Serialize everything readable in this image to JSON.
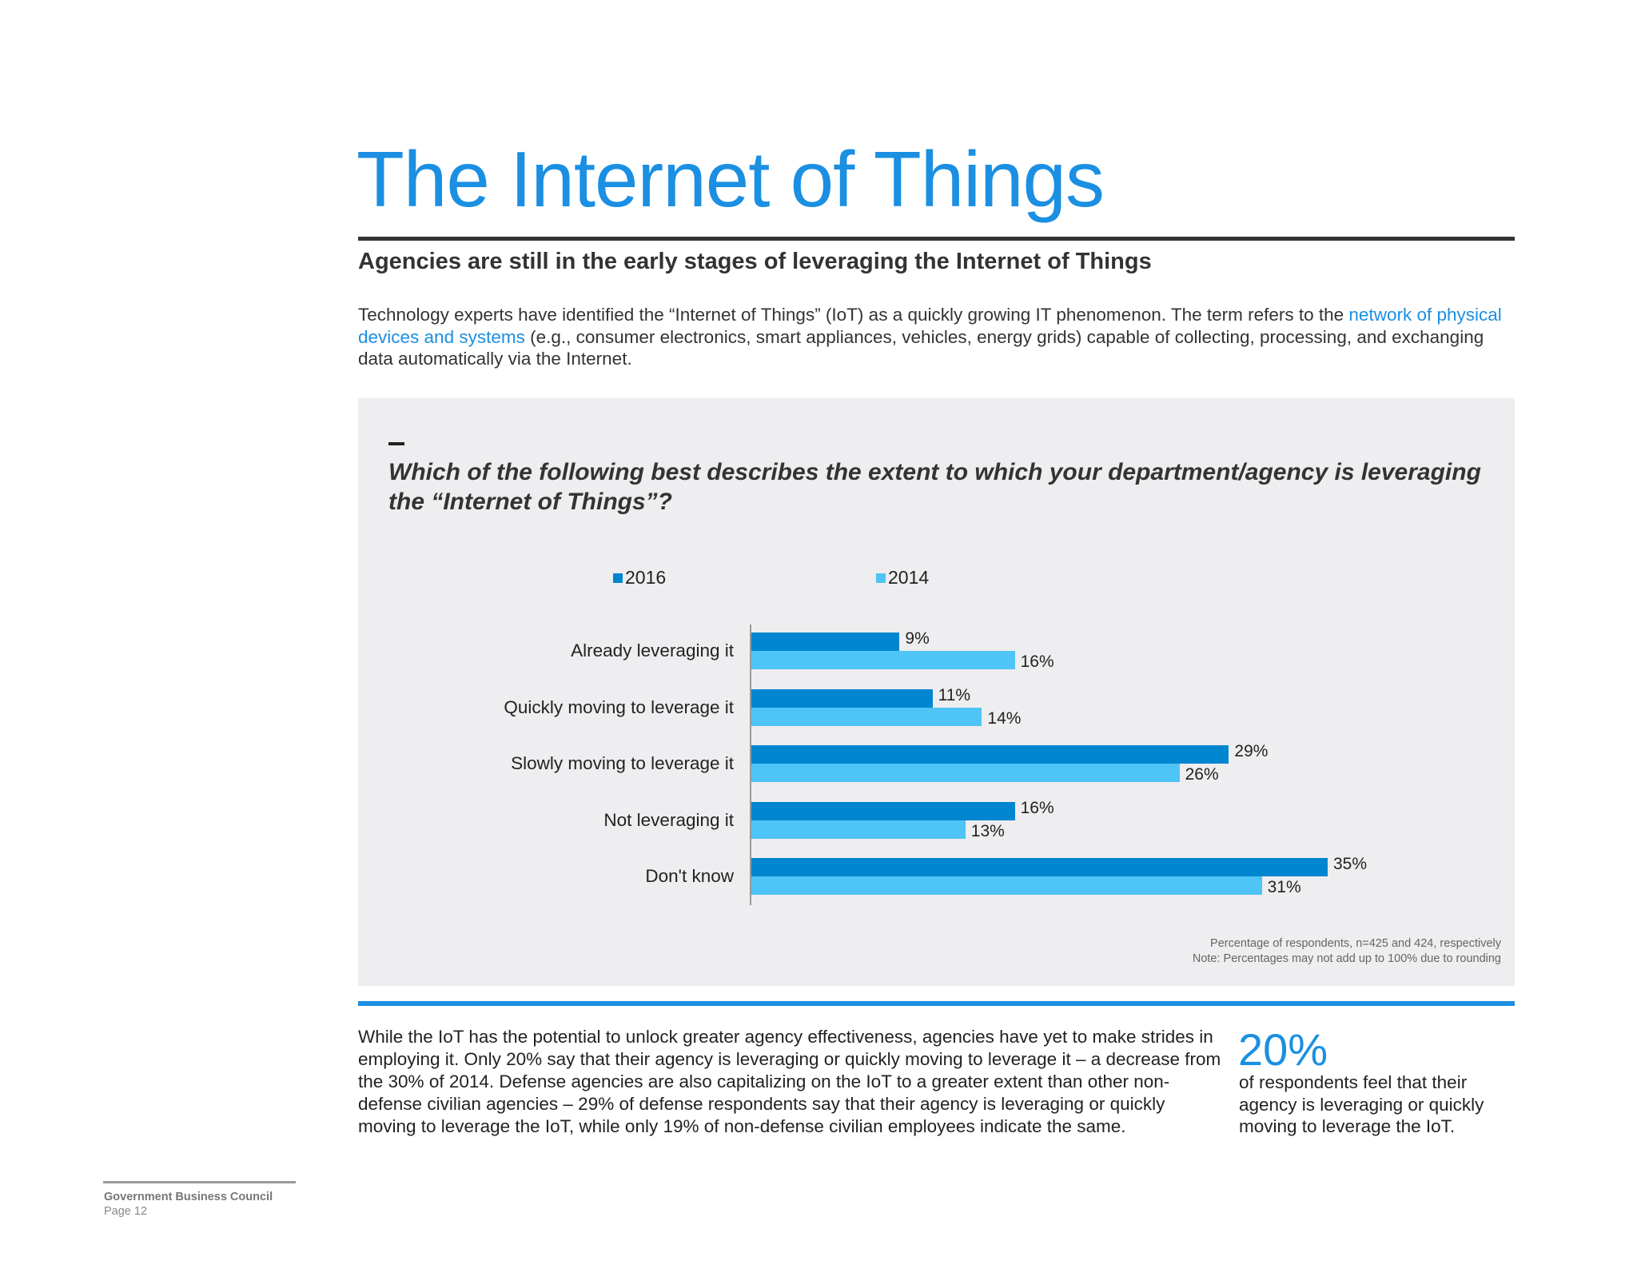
{
  "title": "The Internet of Things",
  "subtitle": "Agencies are still in the early stages of leveraging the Internet of Things",
  "intro": {
    "before": "Technology experts have identified the “Internet of Things” (IoT) as a quickly growing IT phenomenon. The term refers to the ",
    "link": "network of physical devices and systems",
    "after": " (e.g., consumer electronics, smart appliances, vehicles, energy grids) capable of collecting, processing, and exchanging data automatically via the Internet."
  },
  "question": "Which of the following best describes the extent to which your department/agency is leveraging the “Internet of Things”?",
  "chart_data": {
    "type": "bar",
    "orientation": "horizontal",
    "categories": [
      "Already leveraging it",
      "Quickly moving to leverage it",
      "Slowly moving to leverage it",
      "Not leveraging it",
      "Don't know"
    ],
    "series": [
      {
        "name": "2016",
        "color": "#0086d1",
        "values": [
          9,
          11,
          29,
          16,
          35
        ],
        "labels": [
          "9%",
          "11%",
          "29%",
          "16%",
          "35%"
        ]
      },
      {
        "name": "2014",
        "color": "#4fc4f6",
        "values": [
          16,
          14,
          26,
          13,
          31
        ],
        "labels": [
          "16%",
          "14%",
          "26%",
          "13%",
          "31%"
        ]
      }
    ],
    "legend_position": "top",
    "grid": false,
    "notes": [
      "Percentage of respondents, n=425 and 424, respectively",
      "Note: Percentages may not add up to 100% due to rounding"
    ]
  },
  "body": "While the IoT has the potential to unlock greater agency effectiveness, agencies have yet to make strides in employing it. Only 20% say that their agency is leveraging or quickly moving to leverage it – a decrease from the 30% of 2014. Defense agencies are also capitalizing on the IoT to a greater extent than other non-defense civilian agencies – 29% of defense respondents say that their agency is leveraging or quickly moving to leverage the IoT, while only 19% of non-defense civilian employees indicate the same.",
  "callout": {
    "value": "20%",
    "text": "of respondents feel that their agency is leveraging or quickly moving to leverage the IoT."
  },
  "footer": {
    "org": "Government Business Council",
    "page": "Page 12"
  },
  "colors": {
    "accent": "#1b8fe2"
  }
}
